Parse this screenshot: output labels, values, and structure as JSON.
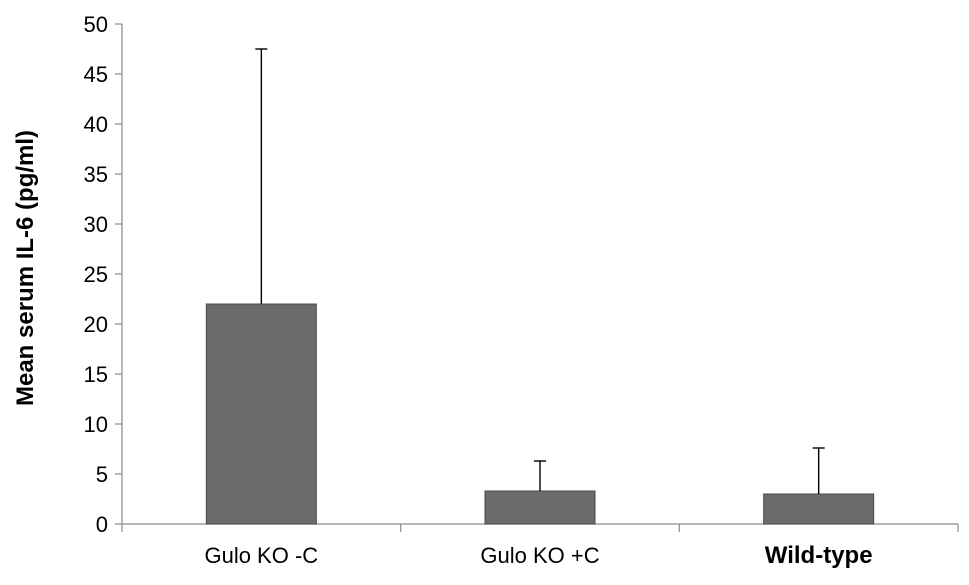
{
  "chart_data": {
    "type": "bar",
    "title": "",
    "xlabel": "",
    "ylabel": "Mean serum IL-6 (pg/ml)",
    "categories": [
      "Gulo KO -C",
      "Gulo KO +C",
      "Wild-type"
    ],
    "bold_categories": [
      false,
      false,
      true
    ],
    "values": [
      22,
      3.3,
      3.0
    ],
    "error_upper": [
      47.5,
      6.3,
      7.6
    ],
    "ylim": [
      0,
      50
    ],
    "yticks": [
      "0",
      "5",
      "10",
      "15",
      "20",
      "25",
      "30",
      "35",
      "40",
      "45",
      "50"
    ],
    "grid": false,
    "legend": "none",
    "bar_color": "#6b6b6b"
  }
}
